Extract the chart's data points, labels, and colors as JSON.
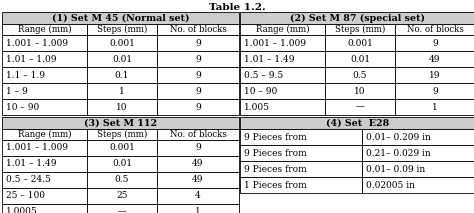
{
  "title": "Table 1.2.",
  "set1_header": "(1) Set M 45 (Normal set)",
  "set2_header": "(2) Set M 87 (special set)",
  "set3_header": "(3) Set M 112",
  "set4_header": "(4) Set  E28",
  "col_headers": [
    "Range (mm)",
    "Steps (mm)",
    "No. of blocks"
  ],
  "set1_data": [
    [
      "1.001 – 1.009",
      "0.001",
      "9"
    ],
    [
      "1.01 – 1.09",
      "0.01",
      "9"
    ],
    [
      "1.1 – 1.9",
      "0.1",
      "9"
    ],
    [
      "1 – 9",
      "1",
      "9"
    ],
    [
      "10 – 90",
      "10",
      "9"
    ]
  ],
  "set2_data": [
    [
      "1.001 – 1.009",
      "0.001",
      "9"
    ],
    [
      "1.01 – 1.49",
      "0.01",
      "49"
    ],
    [
      "0.5 – 9.5",
      "0.5",
      "19"
    ],
    [
      "10 – 90",
      "10",
      "9"
    ],
    [
      "1.005",
      "—",
      "1"
    ]
  ],
  "set3_data": [
    [
      "1.001 – 1.009",
      "0.001",
      "9"
    ],
    [
      "1.01 – 1.49",
      "0.01",
      "49"
    ],
    [
      "0.5 – 24.5",
      "0.5",
      "49"
    ],
    [
      "25 – 100",
      "25",
      "4"
    ],
    [
      "1.0005",
      "—",
      "1"
    ]
  ],
  "set4_data": [
    [
      "9 Pieces from",
      "0.01– 0.209 in"
    ],
    [
      "9 Pieces from",
      "0.21– 0.029 in"
    ],
    [
      "9 Pieces from",
      "0.01– 0.09 in"
    ],
    [
      "1 Pieces from",
      "0.02005 in"
    ]
  ],
  "title_fontsize": 7.5,
  "header_fontsize": 6.8,
  "cell_fontsize": 6.5,
  "subhdr_fontsize": 6.2,
  "header_bg": "#cccccc",
  "cell_bg": "#ffffff",
  "edge_color": "#000000",
  "lw": 0.6,
  "fig_w": 4.74,
  "fig_h": 2.13,
  "dpi": 100
}
